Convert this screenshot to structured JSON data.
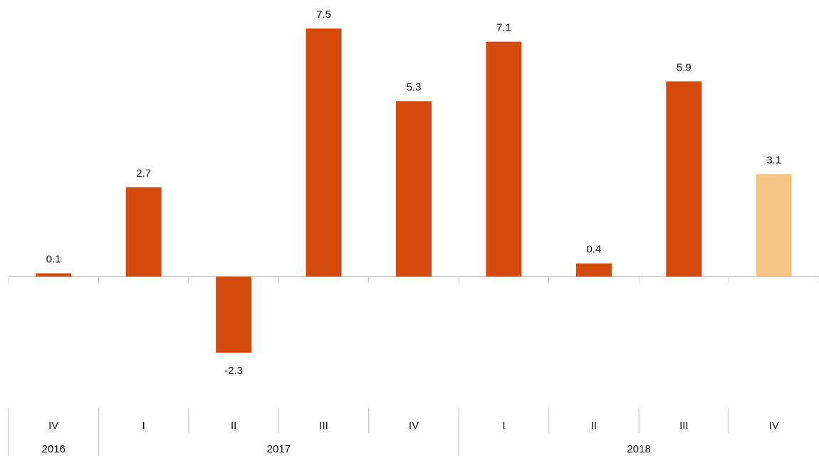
{
  "chart_data": {
    "type": "bar",
    "categories": [
      "IV",
      "I",
      "II",
      "III",
      "IV",
      "I",
      "II",
      "III",
      "IV"
    ],
    "groups": [
      {
        "label": "2016",
        "members": 1
      },
      {
        "label": "2017",
        "members": 4
      },
      {
        "label": "2018",
        "members": 4
      }
    ],
    "values": [
      0.1,
      2.7,
      -2.3,
      7.5,
      5.3,
      7.1,
      0.4,
      5.9,
      3.1
    ],
    "colors": [
      "#d54b0d",
      "#d54b0d",
      "#d54b0d",
      "#d54b0d",
      "#d54b0d",
      "#d54b0d",
      "#d54b0d",
      "#d54b0d",
      "#f5c382"
    ]
  }
}
